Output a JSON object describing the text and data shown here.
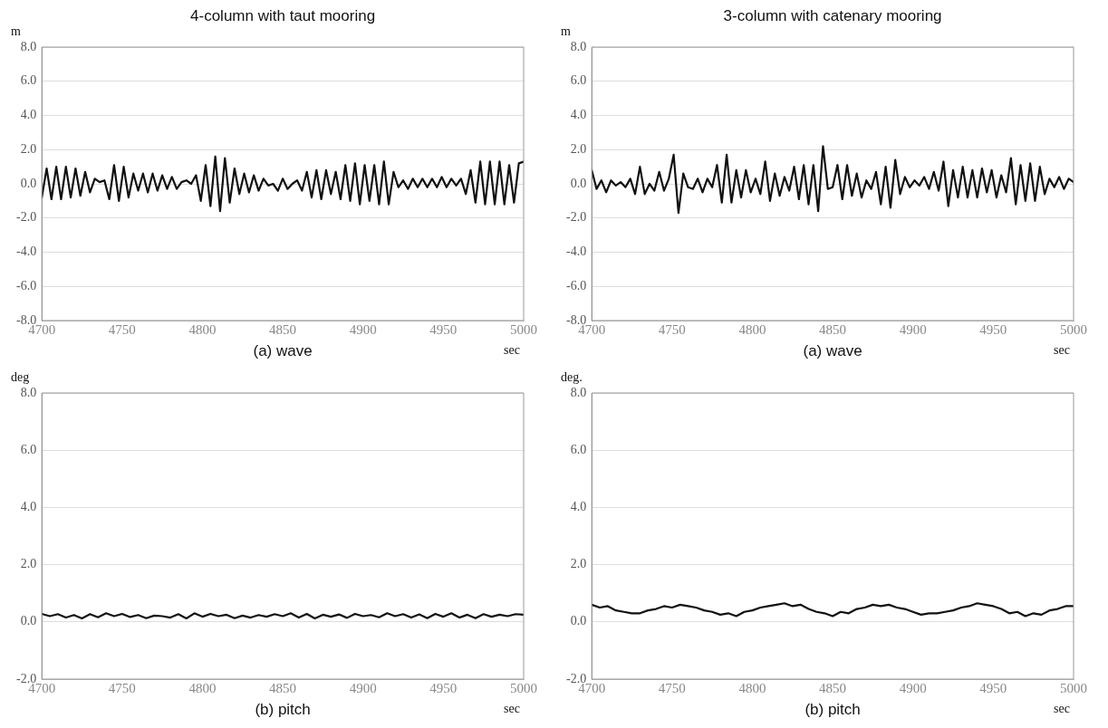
{
  "chart_data": [
    {
      "type": "line",
      "title": "4-column with taut mooring",
      "ylabel": "m",
      "xlabel": "sec",
      "annotations": [
        "(a) wave"
      ],
      "grid": "y",
      "marker": "none",
      "line_style": "solid",
      "xlim": [
        4700,
        5000
      ],
      "ylim": [
        -8,
        8
      ],
      "xticks": [
        4700,
        4750,
        4800,
        4850,
        4900,
        4950,
        5000
      ],
      "yticks": [
        {
          "value": -8,
          "label": "-8.0"
        },
        {
          "value": -6,
          "label": "-6.0"
        },
        {
          "value": -4,
          "label": "-4.0"
        },
        {
          "value": -2,
          "label": "-2.0"
        },
        {
          "value": 0,
          "label": "0.0"
        },
        {
          "value": 2,
          "label": "2.0"
        },
        {
          "value": 4,
          "label": "4.0"
        },
        {
          "value": 6,
          "label": "6.0"
        },
        {
          "value": 8,
          "label": "8.0"
        }
      ],
      "series": [
        {
          "color": "#111111",
          "x": [
            4700,
            4703,
            4706,
            4709,
            4712,
            4715,
            4718,
            4721,
            4724,
            4727,
            4730,
            4733,
            4736,
            4739,
            4742,
            4745,
            4748,
            4751,
            4754,
            4757,
            4760,
            4763,
            4766,
            4769,
            4772,
            4775,
            4778,
            4781,
            4784,
            4787,
            4790,
            4793,
            4796,
            4799,
            4802,
            4805,
            4808,
            4811,
            4814,
            4817,
            4820,
            4823,
            4826,
            4829,
            4832,
            4835,
            4838,
            4841,
            4844,
            4847,
            4850,
            4853,
            4856,
            4859,
            4862,
            4865,
            4868,
            4871,
            4874,
            4877,
            4880,
            4883,
            4886,
            4889,
            4892,
            4895,
            4898,
            4901,
            4904,
            4907,
            4910,
            4913,
            4916,
            4919,
            4922,
            4925,
            4928,
            4931,
            4934,
            4937,
            4940,
            4943,
            4946,
            4949,
            4952,
            4955,
            4958,
            4961,
            4964,
            4967,
            4970,
            4973,
            4976,
            4979,
            4982,
            4985,
            4988,
            4991,
            4994,
            4997,
            5000
          ],
          "values": [
            -0.8,
            0.9,
            -0.9,
            1.0,
            -0.9,
            1.0,
            -0.8,
            0.9,
            -0.7,
            0.7,
            -0.5,
            0.3,
            0.1,
            0.2,
            -0.9,
            1.1,
            -1.0,
            1.0,
            -0.8,
            0.6,
            -0.4,
            0.6,
            -0.5,
            0.6,
            -0.4,
            0.5,
            -0.3,
            0.4,
            -0.3,
            0.1,
            0.2,
            0.0,
            0.5,
            -1.0,
            1.1,
            -1.3,
            1.6,
            -1.6,
            1.5,
            -1.1,
            0.9,
            -0.6,
            0.6,
            -0.5,
            0.5,
            -0.4,
            0.3,
            -0.1,
            0.0,
            -0.4,
            0.3,
            -0.3,
            0.0,
            0.2,
            -0.4,
            0.7,
            -0.8,
            0.8,
            -0.9,
            0.8,
            -0.6,
            0.7,
            -0.9,
            1.1,
            -1.0,
            1.2,
            -1.2,
            1.1,
            -1.0,
            1.1,
            -1.2,
            1.3,
            -1.2,
            0.7,
            -0.2,
            0.2,
            -0.3,
            0.3,
            -0.2,
            0.3,
            -0.2,
            0.3,
            -0.2,
            0.4,
            -0.2,
            0.3,
            -0.1,
            0.3,
            -0.6,
            0.8,
            -1.1,
            1.3,
            -1.2,
            1.3,
            -1.2,
            1.3,
            -1.2,
            1.1,
            -1.1,
            1.2,
            1.3
          ]
        }
      ]
    },
    {
      "type": "line",
      "title": "3-column with catenary mooring",
      "ylabel": "m",
      "xlabel": "sec",
      "annotations": [
        "(a) wave"
      ],
      "grid": "y",
      "marker": "none",
      "line_style": "solid",
      "xlim": [
        4700,
        5000
      ],
      "ylim": [
        -8,
        8
      ],
      "xticks": [
        4700,
        4750,
        4800,
        4850,
        4900,
        4950,
        5000
      ],
      "yticks": [
        {
          "value": -8,
          "label": "-8.0"
        },
        {
          "value": -6,
          "label": "-6.0"
        },
        {
          "value": -4,
          "label": "-4.0"
        },
        {
          "value": -2,
          "label": "-2.0"
        },
        {
          "value": 0,
          "label": "0.0"
        },
        {
          "value": 2,
          "label": "2.0"
        },
        {
          "value": 4,
          "label": "4.0"
        },
        {
          "value": 6,
          "label": "6.0"
        },
        {
          "value": 8,
          "label": "8.0"
        }
      ],
      "series": [
        {
          "color": "#111111",
          "x": [
            4700,
            4703,
            4706,
            4709,
            4712,
            4715,
            4718,
            4721,
            4724,
            4727,
            4730,
            4733,
            4736,
            4739,
            4742,
            4745,
            4748,
            4751,
            4754,
            4757,
            4760,
            4763,
            4766,
            4769,
            4772,
            4775,
            4778,
            4781,
            4784,
            4787,
            4790,
            4793,
            4796,
            4799,
            4802,
            4805,
            4808,
            4811,
            4814,
            4817,
            4820,
            4823,
            4826,
            4829,
            4832,
            4835,
            4838,
            4841,
            4844,
            4847,
            4850,
            4853,
            4856,
            4859,
            4862,
            4865,
            4868,
            4871,
            4874,
            4877,
            4880,
            4883,
            4886,
            4889,
            4892,
            4895,
            4898,
            4901,
            4904,
            4907,
            4910,
            4913,
            4916,
            4919,
            4922,
            4925,
            4928,
            4931,
            4934,
            4937,
            4940,
            4943,
            4946,
            4949,
            4952,
            4955,
            4958,
            4961,
            4964,
            4967,
            4970,
            4973,
            4976,
            4979,
            4982,
            4985,
            4988,
            4991,
            4994,
            4997,
            5000
          ],
          "values": [
            0.8,
            -0.3,
            0.2,
            -0.5,
            0.2,
            -0.1,
            0.1,
            -0.2,
            0.3,
            -0.6,
            1.0,
            -0.6,
            0.0,
            -0.4,
            0.7,
            -0.4,
            0.3,
            1.7,
            -1.7,
            0.6,
            -0.2,
            -0.3,
            0.3,
            -0.5,
            0.3,
            -0.2,
            1.1,
            -1.1,
            1.7,
            -1.1,
            0.8,
            -0.8,
            0.8,
            -0.5,
            0.3,
            -0.6,
            1.3,
            -1.0,
            0.6,
            -0.7,
            0.4,
            -0.4,
            1.0,
            -0.9,
            1.1,
            -1.2,
            1.1,
            -1.6,
            2.2,
            -0.3,
            -0.2,
            1.1,
            -0.9,
            1.1,
            -0.7,
            0.6,
            -0.8,
            0.2,
            -0.3,
            0.7,
            -1.2,
            1.0,
            -1.4,
            1.4,
            -0.6,
            0.4,
            -0.2,
            0.2,
            -0.1,
            0.4,
            -0.3,
            0.7,
            -0.4,
            1.3,
            -1.3,
            0.8,
            -0.8,
            1.0,
            -0.8,
            0.8,
            -0.8,
            0.9,
            -0.5,
            0.8,
            -0.8,
            0.5,
            -0.5,
            1.5,
            -1.2,
            1.1,
            -1.0,
            1.2,
            -1.0,
            1.0,
            -0.6,
            0.3,
            -0.2,
            0.4,
            -0.3,
            0.3,
            0.1
          ]
        }
      ]
    },
    {
      "type": "line",
      "ylabel": "deg",
      "xlabel": "sec",
      "annotations": [
        "(b) pitch"
      ],
      "grid": "y",
      "marker": "none",
      "line_style": "solid",
      "xlim": [
        4700,
        5000
      ],
      "ylim": [
        -2,
        8
      ],
      "xticks": [
        4700,
        4750,
        4800,
        4850,
        4900,
        4950,
        5000
      ],
      "yticks": [
        {
          "value": -2,
          "label": "-2.0"
        },
        {
          "value": 0,
          "label": "0.0"
        },
        {
          "value": 2,
          "label": "2.0"
        },
        {
          "value": 4,
          "label": "4.0"
        },
        {
          "value": 6,
          "label": "6.0"
        },
        {
          "value": 8,
          "label": "8.0"
        }
      ],
      "series": [
        {
          "color": "#111111",
          "x": [
            4700,
            4705,
            4710,
            4715,
            4720,
            4725,
            4730,
            4735,
            4740,
            4745,
            4750,
            4755,
            4760,
            4765,
            4770,
            4775,
            4780,
            4785,
            4790,
            4795,
            4800,
            4805,
            4810,
            4815,
            4820,
            4825,
            4830,
            4835,
            4840,
            4845,
            4850,
            4855,
            4860,
            4865,
            4870,
            4875,
            4880,
            4885,
            4890,
            4895,
            4900,
            4905,
            4910,
            4915,
            4920,
            4925,
            4930,
            4935,
            4940,
            4945,
            4950,
            4955,
            4960,
            4965,
            4970,
            4975,
            4980,
            4985,
            4990,
            4995,
            5000
          ],
          "values": [
            0.28,
            0.2,
            0.27,
            0.15,
            0.24,
            0.12,
            0.27,
            0.16,
            0.3,
            0.2,
            0.28,
            0.17,
            0.24,
            0.13,
            0.22,
            0.2,
            0.15,
            0.27,
            0.12,
            0.3,
            0.18,
            0.28,
            0.2,
            0.25,
            0.13,
            0.22,
            0.15,
            0.24,
            0.18,
            0.27,
            0.2,
            0.3,
            0.15,
            0.28,
            0.12,
            0.25,
            0.18,
            0.26,
            0.14,
            0.28,
            0.2,
            0.24,
            0.16,
            0.3,
            0.2,
            0.27,
            0.15,
            0.26,
            0.13,
            0.28,
            0.18,
            0.3,
            0.15,
            0.25,
            0.13,
            0.27,
            0.18,
            0.25,
            0.2,
            0.27,
            0.25
          ]
        }
      ]
    },
    {
      "type": "line",
      "ylabel": "deg.",
      "xlabel": "sec",
      "annotations": [
        "(b) pitch"
      ],
      "grid": "y",
      "marker": "none",
      "line_style": "solid",
      "xlim": [
        4700,
        5000
      ],
      "ylim": [
        -2,
        8
      ],
      "xticks": [
        4700,
        4750,
        4800,
        4850,
        4900,
        4950,
        5000
      ],
      "yticks": [
        {
          "value": -2,
          "label": "-2.0"
        },
        {
          "value": 0,
          "label": "0.0"
        },
        {
          "value": 2,
          "label": "2.0"
        },
        {
          "value": 4,
          "label": "4.0"
        },
        {
          "value": 6,
          "label": "6.0"
        },
        {
          "value": 8,
          "label": "8.0"
        }
      ],
      "series": [
        {
          "color": "#111111",
          "x": [
            4700,
            4705,
            4710,
            4715,
            4720,
            4725,
            4730,
            4735,
            4740,
            4745,
            4750,
            4755,
            4760,
            4765,
            4770,
            4775,
            4780,
            4785,
            4790,
            4795,
            4800,
            4805,
            4810,
            4815,
            4820,
            4825,
            4830,
            4835,
            4840,
            4845,
            4850,
            4855,
            4860,
            4865,
            4870,
            4875,
            4880,
            4885,
            4890,
            4895,
            4900,
            4905,
            4910,
            4915,
            4920,
            4925,
            4930,
            4935,
            4940,
            4945,
            4950,
            4955,
            4960,
            4965,
            4970,
            4975,
            4980,
            4985,
            4990,
            4995,
            5000
          ],
          "values": [
            0.6,
            0.5,
            0.55,
            0.4,
            0.35,
            0.3,
            0.3,
            0.4,
            0.45,
            0.55,
            0.5,
            0.6,
            0.55,
            0.5,
            0.4,
            0.35,
            0.25,
            0.3,
            0.2,
            0.35,
            0.4,
            0.5,
            0.55,
            0.6,
            0.65,
            0.55,
            0.6,
            0.45,
            0.35,
            0.3,
            0.2,
            0.35,
            0.3,
            0.45,
            0.5,
            0.6,
            0.55,
            0.6,
            0.5,
            0.45,
            0.35,
            0.25,
            0.3,
            0.3,
            0.35,
            0.4,
            0.5,
            0.55,
            0.65,
            0.6,
            0.55,
            0.45,
            0.3,
            0.35,
            0.2,
            0.3,
            0.25,
            0.4,
            0.45,
            0.55,
            0.55
          ]
        }
      ]
    }
  ]
}
